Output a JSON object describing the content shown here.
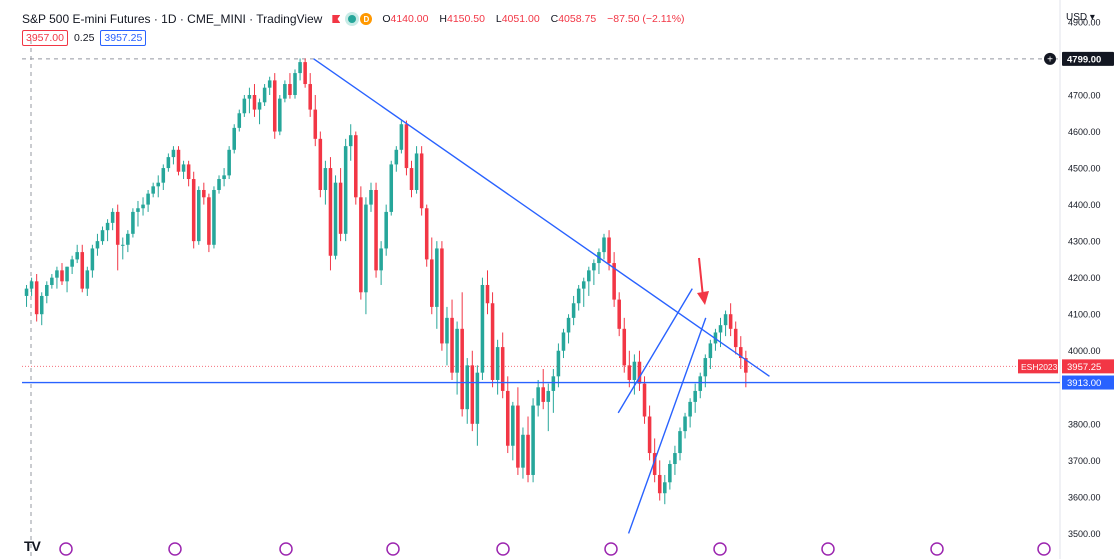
{
  "header": {
    "title": "S&P 500 E-mini Futures · 1D · CME_MINI · TradingView",
    "ohlc": {
      "open_label": "O",
      "open": "4140.00",
      "high_label": "H",
      "high": "4150.50",
      "low_label": "L",
      "low": "4051.00",
      "close_label": "C",
      "close": "4058.75",
      "change": "−87.50 (−2.11%)"
    },
    "market_dot": "D",
    "bid": "3957.00",
    "spread": "0.25",
    "ask": "3957.25"
  },
  "currency": "USD",
  "colors": {
    "up": "#26a69a",
    "down": "#f23645",
    "trendline": "#2962ff",
    "arrow": "#f23645",
    "grid": "#e0e3eb"
  },
  "price_labels": [
    {
      "text": "4799.00",
      "value": 4799,
      "style": "crosshair"
    },
    {
      "symbol": "ESH2023",
      "text": "3957.25",
      "value": 3957.25,
      "style": "last"
    },
    {
      "text": "3913.00",
      "value": 3913,
      "style": "hline"
    }
  ],
  "chart_data": {
    "type": "candlestick",
    "ylim": [
      3430,
      4960
    ],
    "yticks": [
      4900,
      4700,
      4600,
      4500,
      4400,
      4300,
      4200,
      4100,
      4000,
      3800,
      3700,
      3600,
      3500
    ],
    "ytick_labels": [
      "4900.00",
      "4700.00",
      "4600.00",
      "4500.00",
      "4400.00",
      "4300.00",
      "4200.00",
      "4100.00",
      "4000.00",
      "3800.00",
      "3700.00",
      "3600.00",
      "3500.00"
    ],
    "bars": 264,
    "closes": [
      4170,
      4270,
      4100,
      4170,
      4180,
      4300,
      4360,
      4280,
      4380,
      4450,
      4500,
      4560,
      4470,
      4430,
      4380,
      4460,
      4440,
      4530,
      4640,
      4710,
      4680,
      4740,
      4720,
      4600,
      4680,
      4740,
      4800,
      4720,
      4600,
      4560,
      4250,
      4530,
      4380,
      4470,
      4140,
      4420,
      4200,
      4300,
      4380,
      4520,
      4600,
      4530,
      4370,
      4290,
      4170,
      4030,
      3950,
      3900,
      4090,
      4140,
      4050,
      3900,
      3790,
      3640,
      3810,
      3760,
      3900,
      4000,
      4080,
      4200,
      4300,
      4330,
      4180,
      4100,
      4000,
      3950,
      3900,
      3820,
      3640,
      3600,
      3580,
      3700,
      3800,
      3880,
      3990,
      4060,
      4100,
      4050,
      3960
    ],
    "ohlc_bars": [
      [
        4150,
        4180,
        4120,
        4170
      ],
      [
        4170,
        4200,
        4150,
        4190
      ],
      [
        4190,
        4210,
        4080,
        4100
      ],
      [
        4100,
        4160,
        4070,
        4150
      ],
      [
        4150,
        4190,
        4130,
        4180
      ],
      [
        4180,
        4210,
        4170,
        4200
      ],
      [
        4200,
        4230,
        4170,
        4220
      ],
      [
        4220,
        4240,
        4180,
        4190
      ],
      [
        4190,
        4230,
        4160,
        4230
      ],
      [
        4230,
        4260,
        4210,
        4250
      ],
      [
        4250,
        4290,
        4240,
        4270
      ],
      [
        4270,
        4290,
        4160,
        4170
      ],
      [
        4170,
        4230,
        4150,
        4220
      ],
      [
        4220,
        4290,
        4200,
        4280
      ],
      [
        4280,
        4320,
        4260,
        4300
      ],
      [
        4300,
        4340,
        4290,
        4330
      ],
      [
        4330,
        4360,
        4300,
        4350
      ],
      [
        4350,
        4390,
        4330,
        4380
      ],
      [
        4380,
        4400,
        4220,
        4290
      ],
      [
        4290,
        4310,
        4250,
        4290
      ],
      [
        4290,
        4330,
        4270,
        4320
      ],
      [
        4320,
        4390,
        4310,
        4380
      ],
      [
        4380,
        4410,
        4340,
        4390
      ],
      [
        4390,
        4420,
        4370,
        4400
      ],
      [
        4400,
        4440,
        4380,
        4430
      ],
      [
        4430,
        4460,
        4420,
        4450
      ],
      [
        4450,
        4480,
        4420,
        4460
      ],
      [
        4460,
        4510,
        4440,
        4500
      ],
      [
        4500,
        4540,
        4490,
        4530
      ],
      [
        4530,
        4560,
        4510,
        4550
      ],
      [
        4550,
        4560,
        4480,
        4490
      ],
      [
        4490,
        4520,
        4470,
        4510
      ],
      [
        4510,
        4520,
        4450,
        4470
      ],
      [
        4470,
        4490,
        4280,
        4300
      ],
      [
        4300,
        4450,
        4290,
        4440
      ],
      [
        4440,
        4460,
        4400,
        4420
      ],
      [
        4420,
        4430,
        4270,
        4290
      ],
      [
        4290,
        4450,
        4280,
        4440
      ],
      [
        4440,
        4480,
        4430,
        4470
      ],
      [
        4470,
        4500,
        4450,
        4480
      ],
      [
        4480,
        4560,
        4470,
        4550
      ],
      [
        4550,
        4620,
        4540,
        4610
      ],
      [
        4610,
        4660,
        4600,
        4650
      ],
      [
        4650,
        4700,
        4640,
        4690
      ],
      [
        4690,
        4720,
        4650,
        4700
      ],
      [
        4700,
        4730,
        4640,
        4660
      ],
      [
        4660,
        4690,
        4620,
        4680
      ],
      [
        4680,
        4730,
        4670,
        4720
      ],
      [
        4720,
        4750,
        4700,
        4740
      ],
      [
        4740,
        4760,
        4580,
        4600
      ],
      [
        4600,
        4700,
        4590,
        4690
      ],
      [
        4690,
        4740,
        4680,
        4730
      ],
      [
        4730,
        4760,
        4690,
        4700
      ],
      [
        4700,
        4770,
        4690,
        4760
      ],
      [
        4760,
        4800,
        4740,
        4790
      ],
      [
        4790,
        4800,
        4720,
        4730
      ],
      [
        4730,
        4760,
        4640,
        4660
      ],
      [
        4660,
        4700,
        4560,
        4580
      ],
      [
        4580,
        4600,
        4420,
        4440
      ],
      [
        4440,
        4520,
        4400,
        4500
      ],
      [
        4500,
        4530,
        4220,
        4260
      ],
      [
        4260,
        4480,
        4250,
        4460
      ],
      [
        4460,
        4500,
        4300,
        4320
      ],
      [
        4320,
        4580,
        4300,
        4560
      ],
      [
        4560,
        4620,
        4520,
        4590
      ],
      [
        4590,
        4600,
        4400,
        4420
      ],
      [
        4420,
        4450,
        4140,
        4160
      ],
      [
        4160,
        4420,
        4100,
        4400
      ],
      [
        4400,
        4460,
        4380,
        4440
      ],
      [
        4440,
        4460,
        4200,
        4220
      ],
      [
        4220,
        4300,
        4180,
        4280
      ],
      [
        4280,
        4400,
        4260,
        4380
      ],
      [
        4380,
        4520,
        4370,
        4510
      ],
      [
        4510,
        4560,
        4490,
        4550
      ],
      [
        4550,
        4630,
        4540,
        4620
      ],
      [
        4620,
        4630,
        4480,
        4500
      ],
      [
        4500,
        4520,
        4420,
        4440
      ],
      [
        4440,
        4560,
        4430,
        4540
      ],
      [
        4540,
        4560,
        4370,
        4390
      ],
      [
        4390,
        4400,
        4230,
        4250
      ],
      [
        4250,
        4310,
        4100,
        4120
      ],
      [
        4120,
        4300,
        4060,
        4280
      ],
      [
        4280,
        4300,
        4000,
        4020
      ],
      [
        4020,
        4120,
        3960,
        4090
      ],
      [
        4090,
        4140,
        3920,
        3940
      ],
      [
        3940,
        4080,
        3880,
        4060
      ],
      [
        4060,
        4160,
        3820,
        3840
      ],
      [
        3840,
        3980,
        3800,
        3960
      ],
      [
        3960,
        4000,
        3780,
        3800
      ],
      [
        3800,
        3960,
        3740,
        3940
      ],
      [
        3940,
        4200,
        3920,
        4180
      ],
      [
        4180,
        4220,
        4100,
        4130
      ],
      [
        4130,
        4160,
        3900,
        3920
      ],
      [
        3920,
        4030,
        3880,
        4010
      ],
      [
        4010,
        4050,
        3870,
        3890
      ],
      [
        3890,
        3930,
        3720,
        3740
      ],
      [
        3740,
        3860,
        3700,
        3850
      ],
      [
        3850,
        3900,
        3660,
        3680
      ],
      [
        3680,
        3790,
        3650,
        3770
      ],
      [
        3770,
        3820,
        3640,
        3660
      ],
      [
        3660,
        3870,
        3640,
        3850
      ],
      [
        3850,
        3920,
        3820,
        3900
      ],
      [
        3900,
        3950,
        3840,
        3860
      ],
      [
        3860,
        3910,
        3780,
        3890
      ],
      [
        3890,
        3950,
        3830,
        3930
      ],
      [
        3930,
        4020,
        3900,
        4000
      ],
      [
        4000,
        4060,
        3980,
        4050
      ],
      [
        4050,
        4100,
        4020,
        4090
      ],
      [
        4090,
        4150,
        4070,
        4130
      ],
      [
        4130,
        4180,
        4110,
        4170
      ],
      [
        4170,
        4200,
        4120,
        4190
      ],
      [
        4190,
        4230,
        4150,
        4220
      ],
      [
        4220,
        4250,
        4180,
        4240
      ],
      [
        4240,
        4280,
        4210,
        4270
      ],
      [
        4270,
        4320,
        4250,
        4310
      ],
      [
        4310,
        4330,
        4220,
        4240
      ],
      [
        4240,
        4270,
        4120,
        4140
      ],
      [
        4140,
        4160,
        4040,
        4060
      ],
      [
        4060,
        4090,
        3940,
        3960
      ],
      [
        3960,
        4000,
        3900,
        3920
      ],
      [
        3920,
        3990,
        3880,
        3970
      ],
      [
        3970,
        4000,
        3890,
        3910
      ],
      [
        3910,
        3930,
        3800,
        3820
      ],
      [
        3820,
        3850,
        3700,
        3720
      ],
      [
        3720,
        3760,
        3640,
        3660
      ],
      [
        3660,
        3700,
        3590,
        3610
      ],
      [
        3610,
        3660,
        3580,
        3640
      ],
      [
        3640,
        3700,
        3620,
        3690
      ],
      [
        3690,
        3740,
        3660,
        3720
      ],
      [
        3720,
        3790,
        3700,
        3780
      ],
      [
        3780,
        3830,
        3760,
        3820
      ],
      [
        3820,
        3870,
        3790,
        3860
      ],
      [
        3860,
        3910,
        3830,
        3890
      ],
      [
        3890,
        3940,
        3870,
        3930
      ],
      [
        3930,
        3990,
        3900,
        3980
      ],
      [
        3980,
        4030,
        3950,
        4020
      ],
      [
        4020,
        4060,
        4000,
        4050
      ],
      [
        4050,
        4090,
        4010,
        4070
      ],
      [
        4070,
        4110,
        4040,
        4100
      ],
      [
        4100,
        4130,
        4040,
        4060
      ],
      [
        4060,
        4080,
        3990,
        4010
      ],
      [
        4010,
        4040,
        3950,
        3980
      ],
      [
        3980,
        4000,
        3900,
        3940
      ]
    ],
    "trendlines": [
      {
        "name": "descending-resistance",
        "from": [
          0.2815,
          4799
        ],
        "to": [
          0.7215,
          3930
        ]
      },
      {
        "name": "wedge-upper",
        "from": [
          0.5755,
          3830
        ],
        "to": [
          0.647,
          4170
        ]
      },
      {
        "name": "wedge-lower",
        "from": [
          0.5855,
          3500
        ],
        "to": [
          0.66,
          4090
        ]
      },
      {
        "name": "horizontal-support",
        "from": [
          0.0,
          3913
        ],
        "to": [
          0.95,
          3913
        ]
      }
    ],
    "dashed_hline": 4799,
    "dotted_hline": 3957.25,
    "x_range_fraction": [
      0.0,
      0.95
    ]
  }
}
